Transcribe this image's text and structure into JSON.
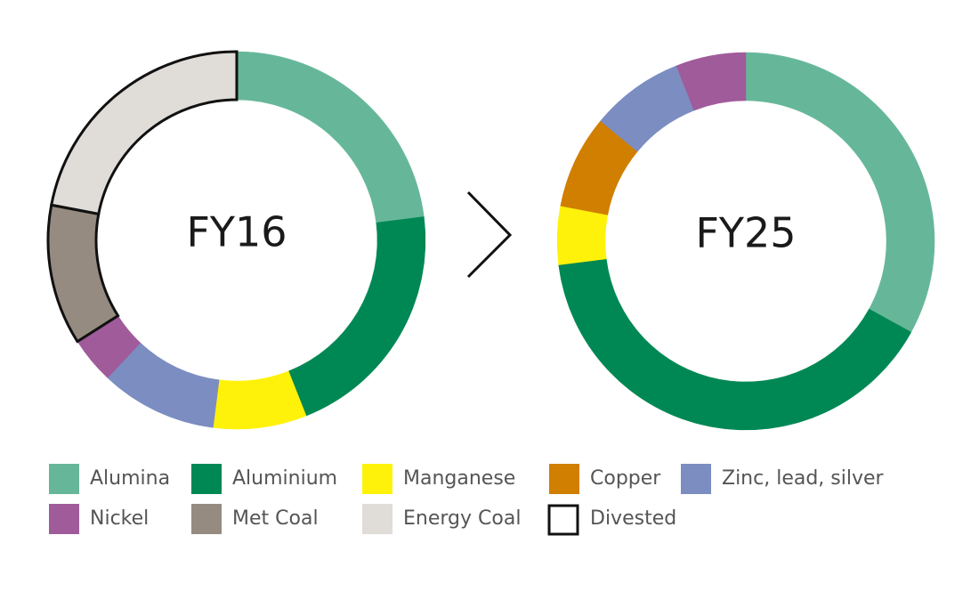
{
  "chart_data": [
    {
      "type": "pie",
      "title": "FY16",
      "categories": [
        "Alumina",
        "Aluminium",
        "Manganese",
        "Zinc, lead, silver",
        "Nickel",
        "Met Coal",
        "Energy Coal"
      ],
      "values": [
        23,
        21,
        8,
        10,
        4,
        12,
        22
      ],
      "outlined": [
        false,
        false,
        false,
        false,
        false,
        true,
        true
      ]
    },
    {
      "type": "pie",
      "title": "FY25",
      "categories": [
        "Alumina",
        "Aluminium",
        "Manganese",
        "Copper",
        "Zinc, lead, silver",
        "Nickel"
      ],
      "values": [
        33,
        40,
        5,
        8,
        8,
        6
      ],
      "outlined": [
        false,
        false,
        false,
        false,
        false,
        false
      ]
    }
  ],
  "legend": {
    "items": [
      {
        "name": "Alumina",
        "color": "#66b79a"
      },
      {
        "name": "Aluminium",
        "color": "#008854"
      },
      {
        "name": "Manganese",
        "color": "#fff20a"
      },
      {
        "name": "Copper",
        "color": "#d07f00"
      },
      {
        "name": "Zinc, lead, silver",
        "color": "#7b8dc1"
      },
      {
        "name": "Nickel",
        "color": "#a05b9a"
      },
      {
        "name": "Met Coal",
        "color": "#968b80"
      },
      {
        "name": "Energy Coal",
        "color": "#e0dcd8"
      }
    ],
    "divested": "Divested"
  }
}
